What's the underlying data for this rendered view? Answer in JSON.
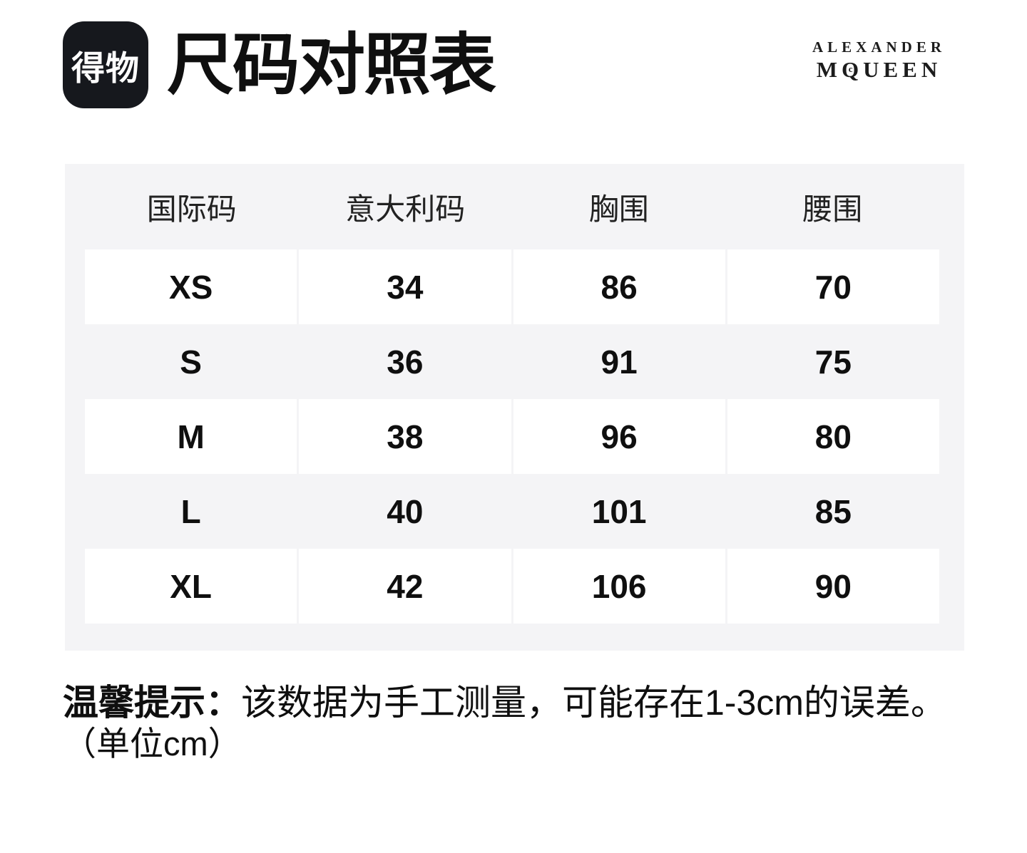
{
  "header": {
    "logo_text": "得物",
    "title": "尺码对照表",
    "brand": {
      "line1": "ALEXANDER",
      "line2_left": "M",
      "line2_q": "Q",
      "line2_q_inner": "c",
      "line2_right": "UEEN"
    }
  },
  "table": {
    "columns": [
      "国际码",
      "意大利码",
      "胸围",
      "腰围"
    ],
    "rows": [
      {
        "cells": [
          "XS",
          "34",
          "86",
          "70"
        ]
      },
      {
        "cells": [
          "S",
          "36",
          "91",
          "75"
        ]
      },
      {
        "cells": [
          "M",
          "38",
          "96",
          "80"
        ]
      },
      {
        "cells": [
          "L",
          "40",
          "101",
          "85"
        ]
      },
      {
        "cells": [
          "XL",
          "42",
          "106",
          "90"
        ]
      }
    ]
  },
  "footnote": {
    "label": "温馨提示：",
    "text": "该数据为手工测量，可能存在1-3cm的误差。",
    "unit_line": "（单位cm）"
  },
  "colors": {
    "table_background": "#f4f4f6",
    "cell_background": "#ffffff",
    "text": "#111111",
    "logo_background": "#16181d"
  }
}
